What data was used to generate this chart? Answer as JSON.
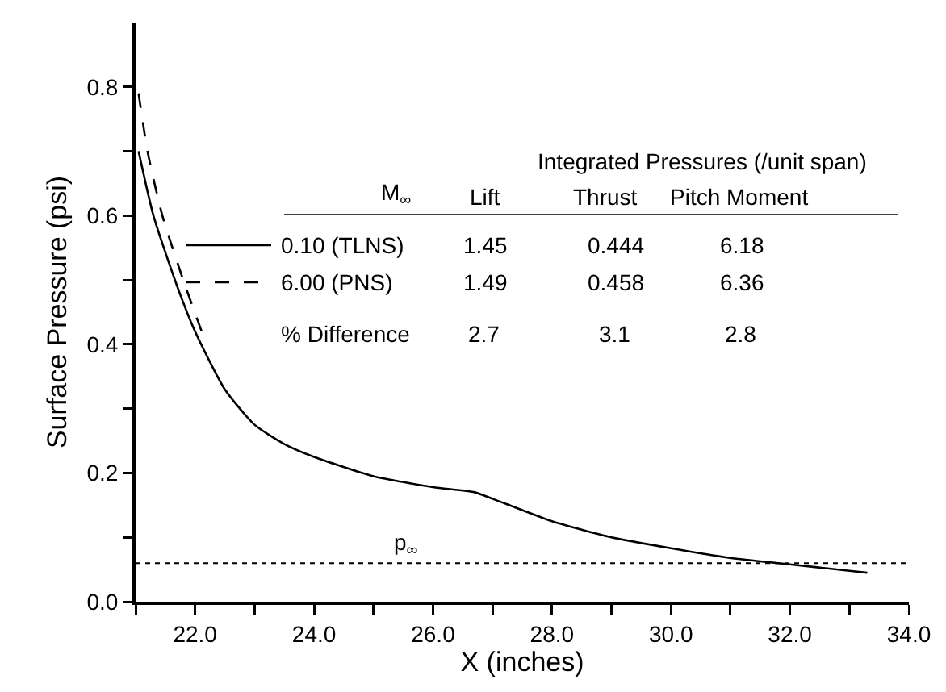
{
  "chart_data": {
    "type": "line",
    "xlabel": "X (inches)",
    "ylabel": "Surface Pressure (psi)",
    "xlim": [
      21,
      34
    ],
    "ylim": [
      0,
      0.9
    ],
    "xticks": [
      {
        "value": 21,
        "label": null
      },
      {
        "value": 22,
        "label": "22.0"
      },
      {
        "value": 23,
        "label": null
      },
      {
        "value": 24,
        "label": "24.0"
      },
      {
        "value": 25,
        "label": null
      },
      {
        "value": 26,
        "label": "26.0"
      },
      {
        "value": 27,
        "label": null
      },
      {
        "value": 28,
        "label": "28.0"
      },
      {
        "value": 29,
        "label": null
      },
      {
        "value": 30,
        "label": "30.0"
      },
      {
        "value": 31,
        "label": null
      },
      {
        "value": 32,
        "label": "32.0"
      },
      {
        "value": 33,
        "label": null
      },
      {
        "value": 34,
        "label": "34.0"
      }
    ],
    "yticks": [
      {
        "value": 0,
        "label": "0.0"
      },
      {
        "value": 0.1,
        "label": null
      },
      {
        "value": 0.2,
        "label": "0.2"
      },
      {
        "value": 0.3,
        "label": null
      },
      {
        "value": 0.4,
        "label": "0.4"
      },
      {
        "value": 0.5,
        "label": null
      },
      {
        "value": 0.6,
        "label": "0.6"
      },
      {
        "value": 0.7,
        "label": null
      },
      {
        "value": 0.8,
        "label": "0.8"
      }
    ],
    "legend": "top",
    "marker": "none",
    "series": [
      {
        "name": "0.10 (TLNS)",
        "color": "#000000",
        "line_style": "solid",
        "x": [
          21.05,
          21.3,
          21.7,
          22.0,
          22.5,
          23.0,
          23.5,
          24.0,
          25.0,
          26.0,
          26.7,
          27.0,
          28.0,
          29.0,
          30.0,
          31.0,
          32.0,
          33.0,
          33.3
        ],
        "values": [
          0.7,
          0.6,
          0.49,
          0.42,
          0.33,
          0.275,
          0.245,
          0.225,
          0.195,
          0.178,
          0.17,
          0.16,
          0.125,
          0.1,
          0.083,
          0.068,
          0.058,
          0.048,
          0.045
        ]
      },
      {
        "name": "6.00 (PNS)",
        "color": "#000000",
        "line_style": "dashed",
        "x": [
          21.05,
          21.2,
          21.45,
          21.8,
          22.15
        ],
        "values": [
          0.79,
          0.7,
          0.6,
          0.5,
          0.41
        ]
      }
    ],
    "ref_lines": [
      {
        "axis": "y",
        "value": 0.06,
        "label": "p$_{∞}$",
        "line_style": "dotted",
        "color": "#000000"
      }
    ],
    "annotations": [
      "Integrated Pressures (/unit span)",
      "M$_{∞}$",
      "Lift",
      "Thrust",
      "Pitch Moment",
      "1.45",
      "0.444",
      "6.18",
      "1.49",
      "0.458",
      "6.36",
      "% Difference",
      "2.7",
      "3.1",
      "2.8"
    ]
  }
}
